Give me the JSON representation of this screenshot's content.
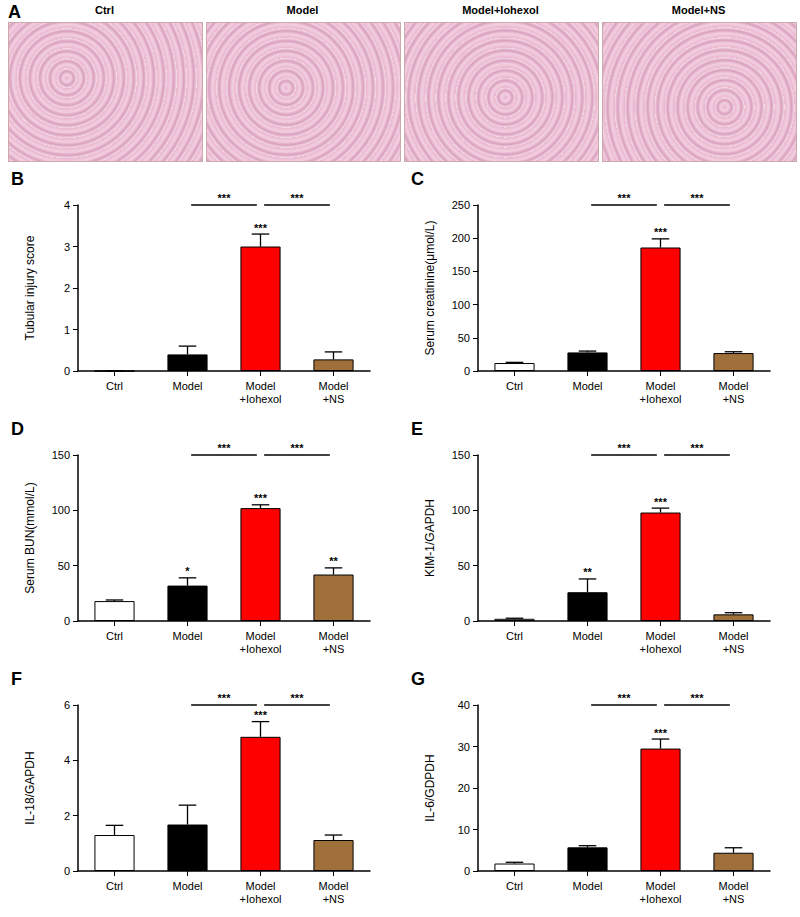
{
  "image_panel": {
    "panel": "A",
    "images": [
      "Ctrl",
      "Model",
      "Model+Iohexol",
      "Model+NS"
    ]
  },
  "chart_data": [
    {
      "type": "bar",
      "panel": "B",
      "ylabel": "Tubular injury score",
      "categories": [
        "Ctrl",
        "Model",
        "Model\n+Iohexol",
        "Model\n+NS"
      ],
      "values": [
        0,
        0.4,
        3.0,
        0.28
      ],
      "errors": [
        0,
        0.2,
        0.3,
        0.18
      ],
      "colors": [
        "#ffffff",
        "#000000",
        "#ff0000",
        "#a0703a"
      ],
      "ylim": [
        0,
        4
      ],
      "yticks": [
        0,
        1,
        2,
        3,
        4
      ],
      "grid": false,
      "significance": [
        null,
        null,
        "***",
        null
      ],
      "comparisons": [
        {
          "from": "Model",
          "to": "Model\n+Iohexol",
          "label": "***"
        },
        {
          "from": "Model\n+Iohexol",
          "to": "Model\n+NS",
          "label": "***"
        }
      ]
    },
    {
      "type": "bar",
      "panel": "C",
      "ylabel": "Serum creatinine(μmol/L)",
      "categories": [
        "Ctrl",
        "Model",
        "Model\n+Iohexol",
        "Model\n+NS"
      ],
      "values": [
        12,
        28,
        186,
        27
      ],
      "errors": [
        1,
        2,
        13,
        2
      ],
      "colors": [
        "#ffffff",
        "#000000",
        "#ff0000",
        "#a0703a"
      ],
      "ylim": [
        0,
        250
      ],
      "yticks": [
        0,
        50,
        100,
        150,
        200,
        250
      ],
      "grid": false,
      "significance": [
        null,
        null,
        "***",
        null
      ],
      "comparisons": [
        {
          "from": "Model",
          "to": "Model\n+Iohexol",
          "label": "***"
        },
        {
          "from": "Model\n+Iohexol",
          "to": "Model\n+NS",
          "label": "***"
        }
      ]
    },
    {
      "type": "bar",
      "panel": "D",
      "ylabel": "Serum BUN(mmol/L)",
      "categories": [
        "Ctrl",
        "Model",
        "Model\n+Iohexol",
        "Model\n+NS"
      ],
      "values": [
        18,
        32,
        102,
        42
      ],
      "errors": [
        1,
        7,
        3,
        6
      ],
      "colors": [
        "#ffffff",
        "#000000",
        "#ff0000",
        "#a0703a"
      ],
      "ylim": [
        0,
        150
      ],
      "yticks": [
        0,
        50,
        100,
        150
      ],
      "grid": false,
      "significance": [
        null,
        "*",
        "***",
        "**"
      ],
      "comparisons": [
        {
          "from": "Model",
          "to": "Model\n+Iohexol",
          "label": "***"
        },
        {
          "from": "Model\n+Iohexol",
          "to": "Model\n+NS",
          "label": "***"
        }
      ]
    },
    {
      "type": "bar",
      "panel": "E",
      "ylabel": "KIM-1/GAPDH",
      "categories": [
        "Ctrl",
        "Model",
        "Model\n+Iohexol",
        "Model\n+NS"
      ],
      "values": [
        2,
        26,
        98,
        6
      ],
      "errors": [
        0.5,
        12,
        4,
        1.5
      ],
      "colors": [
        "#ffffff",
        "#000000",
        "#ff0000",
        "#a0703a"
      ],
      "ylim": [
        0,
        150
      ],
      "yticks": [
        0,
        50,
        100,
        150
      ],
      "grid": false,
      "significance": [
        null,
        "**",
        "***",
        null
      ],
      "comparisons": [
        {
          "from": "Model",
          "to": "Model\n+Iohexol",
          "label": "***"
        },
        {
          "from": "Model\n+Iohexol",
          "to": "Model\n+NS",
          "label": "***"
        }
      ]
    },
    {
      "type": "bar",
      "panel": "F",
      "ylabel": "IL-18/GAPDH",
      "categories": [
        "Ctrl",
        "Model",
        "Model\n+Iohexol",
        "Model\n+NS"
      ],
      "values": [
        1.3,
        1.68,
        4.85,
        1.12
      ],
      "errors": [
        0.35,
        0.7,
        0.55,
        0.18
      ],
      "colors": [
        "#ffffff",
        "#000000",
        "#ff0000",
        "#a0703a"
      ],
      "ylim": [
        0,
        6
      ],
      "yticks": [
        0,
        2,
        4,
        6
      ],
      "grid": false,
      "significance": [
        null,
        null,
        "***",
        null
      ],
      "comparisons": [
        {
          "from": "Model",
          "to": "Model\n+Iohexol",
          "label": "***"
        },
        {
          "from": "Model\n+Iohexol",
          "to": "Model\n+NS",
          "label": "***"
        }
      ]
    },
    {
      "type": "bar",
      "panel": "G",
      "ylabel": "IL-6/GDPDH",
      "categories": [
        "Ctrl",
        "Model",
        "Model\n+Iohexol",
        "Model\n+NS"
      ],
      "values": [
        1.8,
        5.7,
        29.5,
        4.4
      ],
      "errors": [
        0.3,
        0.4,
        2.3,
        1.2
      ],
      "colors": [
        "#ffffff",
        "#000000",
        "#ff0000",
        "#a0703a"
      ],
      "ylim": [
        0,
        40
      ],
      "yticks": [
        0,
        10,
        20,
        30,
        40
      ],
      "grid": false,
      "significance": [
        null,
        null,
        "***",
        null
      ],
      "comparisons": [
        {
          "from": "Model",
          "to": "Model\n+Iohexol",
          "label": "***"
        },
        {
          "from": "Model\n+Iohexol",
          "to": "Model\n+NS",
          "label": "***"
        }
      ]
    }
  ]
}
